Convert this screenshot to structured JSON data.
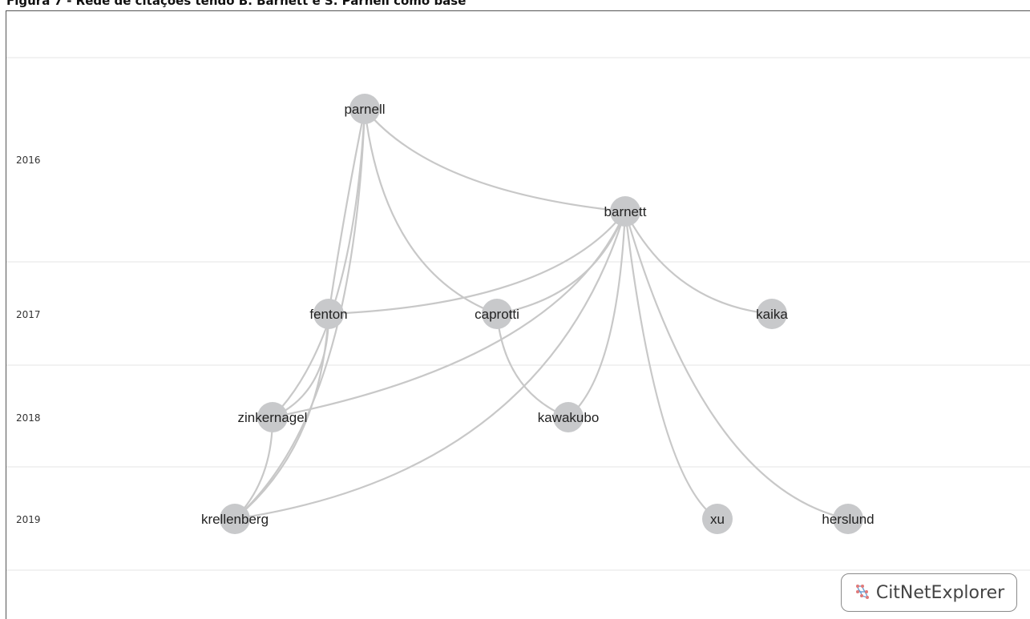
{
  "caption": "Figura 7 - Rede de citações tendo B. Barnett e S. Parnell como base",
  "years": [
    "2016",
    "2017",
    "2018",
    "2019"
  ],
  "nodes": [
    {
      "id": "parnell",
      "label": "parnell",
      "year": "2016"
    },
    {
      "id": "barnett",
      "label": "barnett",
      "year": "2016"
    },
    {
      "id": "fenton",
      "label": "fenton",
      "year": "2017"
    },
    {
      "id": "caprotti",
      "label": "caprotti",
      "year": "2017"
    },
    {
      "id": "kaika",
      "label": "kaika",
      "year": "2017"
    },
    {
      "id": "zinkernagel",
      "label": "zinkernagel",
      "year": "2018"
    },
    {
      "id": "kawakubo",
      "label": "kawakubo",
      "year": "2018"
    },
    {
      "id": "krellenberg",
      "label": "krellenberg",
      "year": "2019"
    },
    {
      "id": "xu",
      "label": "xu",
      "year": "2019"
    },
    {
      "id": "herslund",
      "label": "herslund",
      "year": "2019"
    }
  ],
  "edges": [
    [
      "parnell",
      "barnett"
    ],
    [
      "parnell",
      "caprotti"
    ],
    [
      "parnell",
      "fenton"
    ],
    [
      "parnell",
      "zinkernagel"
    ],
    [
      "parnell",
      "krellenberg"
    ],
    [
      "barnett",
      "fenton"
    ],
    [
      "barnett",
      "caprotti"
    ],
    [
      "barnett",
      "kaika"
    ],
    [
      "barnett",
      "zinkernagel"
    ],
    [
      "barnett",
      "kawakubo"
    ],
    [
      "barnett",
      "krellenberg"
    ],
    [
      "barnett",
      "xu"
    ],
    [
      "barnett",
      "herslund"
    ],
    [
      "caprotti",
      "kawakubo"
    ],
    [
      "fenton",
      "zinkernagel"
    ],
    [
      "fenton",
      "krellenberg"
    ],
    [
      "zinkernagel",
      "krellenberg"
    ]
  ],
  "brand": {
    "text": "CitNetExplorer",
    "icon": "network-icon"
  },
  "colors": {
    "node": "#c8c9cb",
    "edge": "#c8c8c8",
    "separator": "#e6e6e6"
  }
}
